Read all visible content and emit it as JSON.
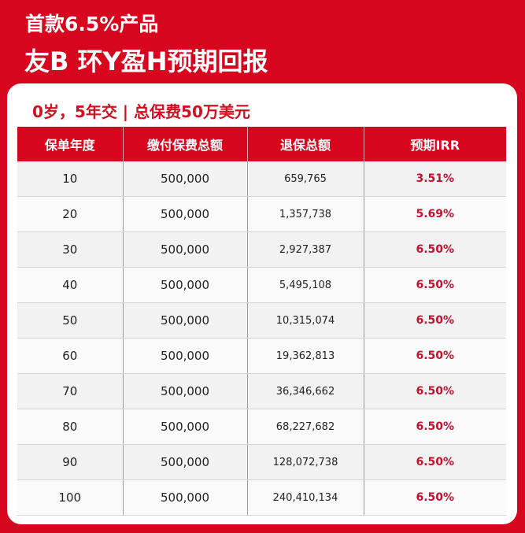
{
  "header": {
    "subtitle": "首款6.5%产品",
    "title": "友B 环Y盈H预期回报"
  },
  "card": {
    "caption": "0岁，5年交 | 总保费50万美元"
  },
  "table": {
    "columns": [
      "保单年度",
      "缴付保费总额",
      "退保总额",
      "预期IRR"
    ],
    "rows": [
      {
        "year": "10",
        "premium": "500,000",
        "surrender": "659,765",
        "irr": "3.51%"
      },
      {
        "year": "20",
        "premium": "500,000",
        "surrender": "1,357,738",
        "irr": "5.69%"
      },
      {
        "year": "30",
        "premium": "500,000",
        "surrender": "2,927,387",
        "irr": "6.50%"
      },
      {
        "year": "40",
        "premium": "500,000",
        "surrender": "5,495,108",
        "irr": "6.50%"
      },
      {
        "year": "50",
        "premium": "500,000",
        "surrender": "10,315,074",
        "irr": "6.50%"
      },
      {
        "year": "60",
        "premium": "500,000",
        "surrender": "19,362,813",
        "irr": "6.50%"
      },
      {
        "year": "70",
        "premium": "500,000",
        "surrender": "36,346,662",
        "irr": "6.50%"
      },
      {
        "year": "80",
        "premium": "500,000",
        "surrender": "68,227,682",
        "irr": "6.50%"
      },
      {
        "year": "90",
        "premium": "500,000",
        "surrender": "128,072,738",
        "irr": "6.50%"
      },
      {
        "year": "100",
        "premium": "500,000",
        "surrender": "240,410,134",
        "irr": "6.50%"
      }
    ]
  },
  "colors": {
    "brand_red": "#d7061e",
    "irr_red": "#c8102e"
  }
}
